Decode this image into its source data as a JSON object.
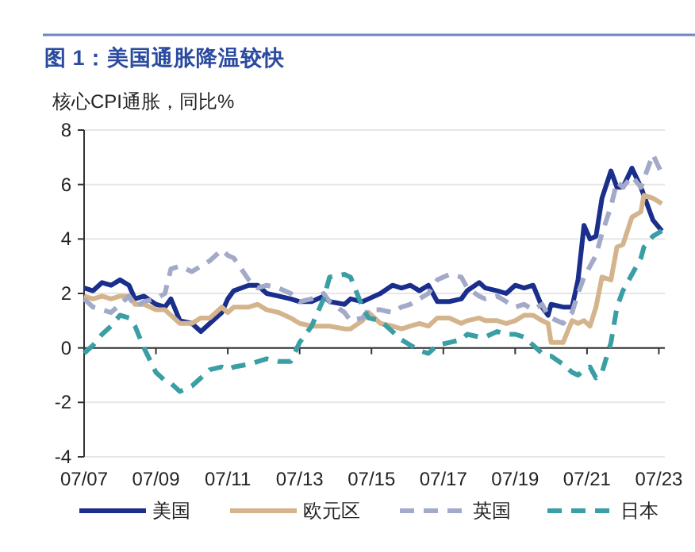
{
  "chart_data": {
    "type": "line",
    "title": "图 1：美国通胀降温较快",
    "ylabel": "核心CPI通胀，同比%",
    "x": [
      "2007-07",
      "2007-10",
      "2008-01",
      "2008-04",
      "2008-07",
      "2008-10",
      "2008-12",
      "2009-03",
      "2009-07",
      "2009-10",
      "2009-12",
      "2010-03",
      "2010-07",
      "2010-10",
      "2011-01",
      "2011-05",
      "2011-07",
      "2011-09",
      "2012-02",
      "2012-05",
      "2012-08",
      "2012-12",
      "2013-04",
      "2013-07",
      "2013-11",
      "2014-03",
      "2014-05",
      "2014-10",
      "2014-12",
      "2015-04",
      "2015-06",
      "2015-10",
      "2016-02",
      "2016-05",
      "2016-08",
      "2016-11",
      "2017-02",
      "2017-05",
      "2017-09",
      "2018-01",
      "2018-03",
      "2018-07",
      "2018-09",
      "2019-01",
      "2019-04",
      "2019-07",
      "2019-10",
      "2020-01",
      "2020-04",
      "2020-06",
      "2020-07",
      "2020-11",
      "2021-02",
      "2021-04",
      "2021-06",
      "2021-08",
      "2021-10",
      "2021-12",
      "2022-03",
      "2022-05",
      "2022-07",
      "2022-10",
      "2023-01",
      "2023-02",
      "2023-05",
      "2023-08"
    ],
    "series": [
      {
        "name": "美国",
        "color": "#1a2e8c",
        "line_style": "solid",
        "values": [
          2.2,
          2.1,
          2.4,
          2.3,
          2.5,
          2.3,
          1.8,
          1.9,
          1.6,
          1.5,
          1.8,
          1.0,
          0.9,
          0.6,
          0.9,
          1.3,
          1.8,
          2.1,
          2.3,
          2.3,
          2.0,
          1.9,
          1.8,
          1.7,
          1.7,
          1.9,
          1.7,
          1.6,
          1.8,
          1.7,
          1.8,
          2.0,
          2.3,
          2.2,
          2.3,
          2.1,
          2.3,
          1.7,
          1.7,
          1.8,
          2.1,
          2.4,
          2.2,
          2.1,
          2.0,
          2.3,
          2.2,
          2.3,
          1.5,
          1.2,
          1.6,
          1.5,
          1.5,
          2.5,
          4.5,
          4.0,
          4.1,
          5.5,
          6.5,
          5.9,
          5.9,
          6.6,
          5.9,
          5.6,
          4.7,
          4.3
        ]
      },
      {
        "name": "欧元区",
        "color": "#d4b48c",
        "line_style": "solid",
        "values": [
          1.9,
          1.8,
          1.9,
          1.8,
          1.9,
          1.9,
          1.6,
          1.6,
          1.4,
          1.4,
          1.2,
          0.9,
          0.9,
          1.1,
          1.1,
          1.5,
          1.3,
          1.5,
          1.5,
          1.6,
          1.4,
          1.3,
          1.1,
          0.9,
          0.8,
          0.8,
          0.8,
          0.7,
          0.7,
          1.0,
          1.3,
          0.9,
          0.8,
          0.7,
          0.8,
          0.9,
          0.8,
          1.1,
          1.1,
          0.9,
          1.0,
          1.1,
          1.0,
          1.0,
          0.9,
          1.0,
          1.2,
          1.2,
          1.0,
          0.9,
          0.2,
          0.2,
          1.0,
          0.9,
          1.0,
          0.8,
          1.5,
          2.6,
          2.5,
          3.7,
          3.8,
          4.8,
          5.0,
          5.6,
          5.5,
          5.3
        ]
      },
      {
        "name": "英国",
        "color": "#a3a9c8",
        "line_style": "dashed",
        "values": [
          1.8,
          1.5,
          1.4,
          1.3,
          1.6,
          1.9,
          1.5,
          1.7,
          1.8,
          2.0,
          2.9,
          3.0,
          2.8,
          3.0,
          3.2,
          3.6,
          3.4,
          3.3,
          2.5,
          2.2,
          2.3,
          2.2,
          2.0,
          1.7,
          1.8,
          2.0,
          1.7,
          1.3,
          1.0,
          1.1,
          1.4,
          1.4,
          1.3,
          1.5,
          1.6,
          1.8,
          2.0,
          2.5,
          2.7,
          2.6,
          2.2,
          1.9,
          1.8,
          1.9,
          1.7,
          1.5,
          1.6,
          1.4,
          1.6,
          1.2,
          1.1,
          0.9,
          1.3,
          2.0,
          2.6,
          3.0,
          3.4,
          4.2,
          5.2,
          6.1,
          5.9,
          6.3,
          5.9,
          6.2,
          7.1,
          6.4
        ]
      },
      {
        "name": "日本",
        "color": "#3a9ea5",
        "line_style": "dashed",
        "values": [
          -0.2,
          0.1,
          0.5,
          0.8,
          1.2,
          1.1,
          0.8,
          0.0,
          -0.9,
          -1.2,
          -1.3,
          -1.6,
          -1.4,
          -1.1,
          -0.8,
          -0.7,
          -0.8,
          -0.7,
          -0.6,
          -0.5,
          -0.4,
          -0.5,
          -0.5,
          0.2,
          0.8,
          1.8,
          2.6,
          2.7,
          2.6,
          1.5,
          1.1,
          1.0,
          0.6,
          0.3,
          0.1,
          -0.1,
          -0.2,
          0.1,
          0.2,
          0.3,
          0.5,
          0.4,
          0.4,
          0.6,
          0.5,
          0.5,
          0.4,
          0.1,
          -0.2,
          -0.3,
          -0.3,
          -0.6,
          -0.9,
          -1.0,
          -0.8,
          -0.7,
          -1.1,
          -0.9,
          0.2,
          1.5,
          2.1,
          2.7,
          3.3,
          3.7,
          4.1,
          4.3
        ]
      }
    ],
    "xlim": [
      "2007-07",
      "2023-09"
    ],
    "xticks": [
      {
        "value": "2007-07",
        "label": "07/07"
      },
      {
        "value": "2009-07",
        "label": "07/09"
      },
      {
        "value": "2011-07",
        "label": "07/11"
      },
      {
        "value": "2013-07",
        "label": "07/13"
      },
      {
        "value": "2015-07",
        "label": "07/15"
      },
      {
        "value": "2017-07",
        "label": "07/17"
      },
      {
        "value": "2019-07",
        "label": "07/19"
      },
      {
        "value": "2021-07",
        "label": "07/21"
      },
      {
        "value": "2023-07",
        "label": "07/23"
      }
    ],
    "ylim": [
      -4,
      8
    ],
    "yticks": [
      -4,
      -2,
      0,
      2,
      4,
      6,
      8
    ],
    "grid": "y",
    "legend": "bottom"
  }
}
